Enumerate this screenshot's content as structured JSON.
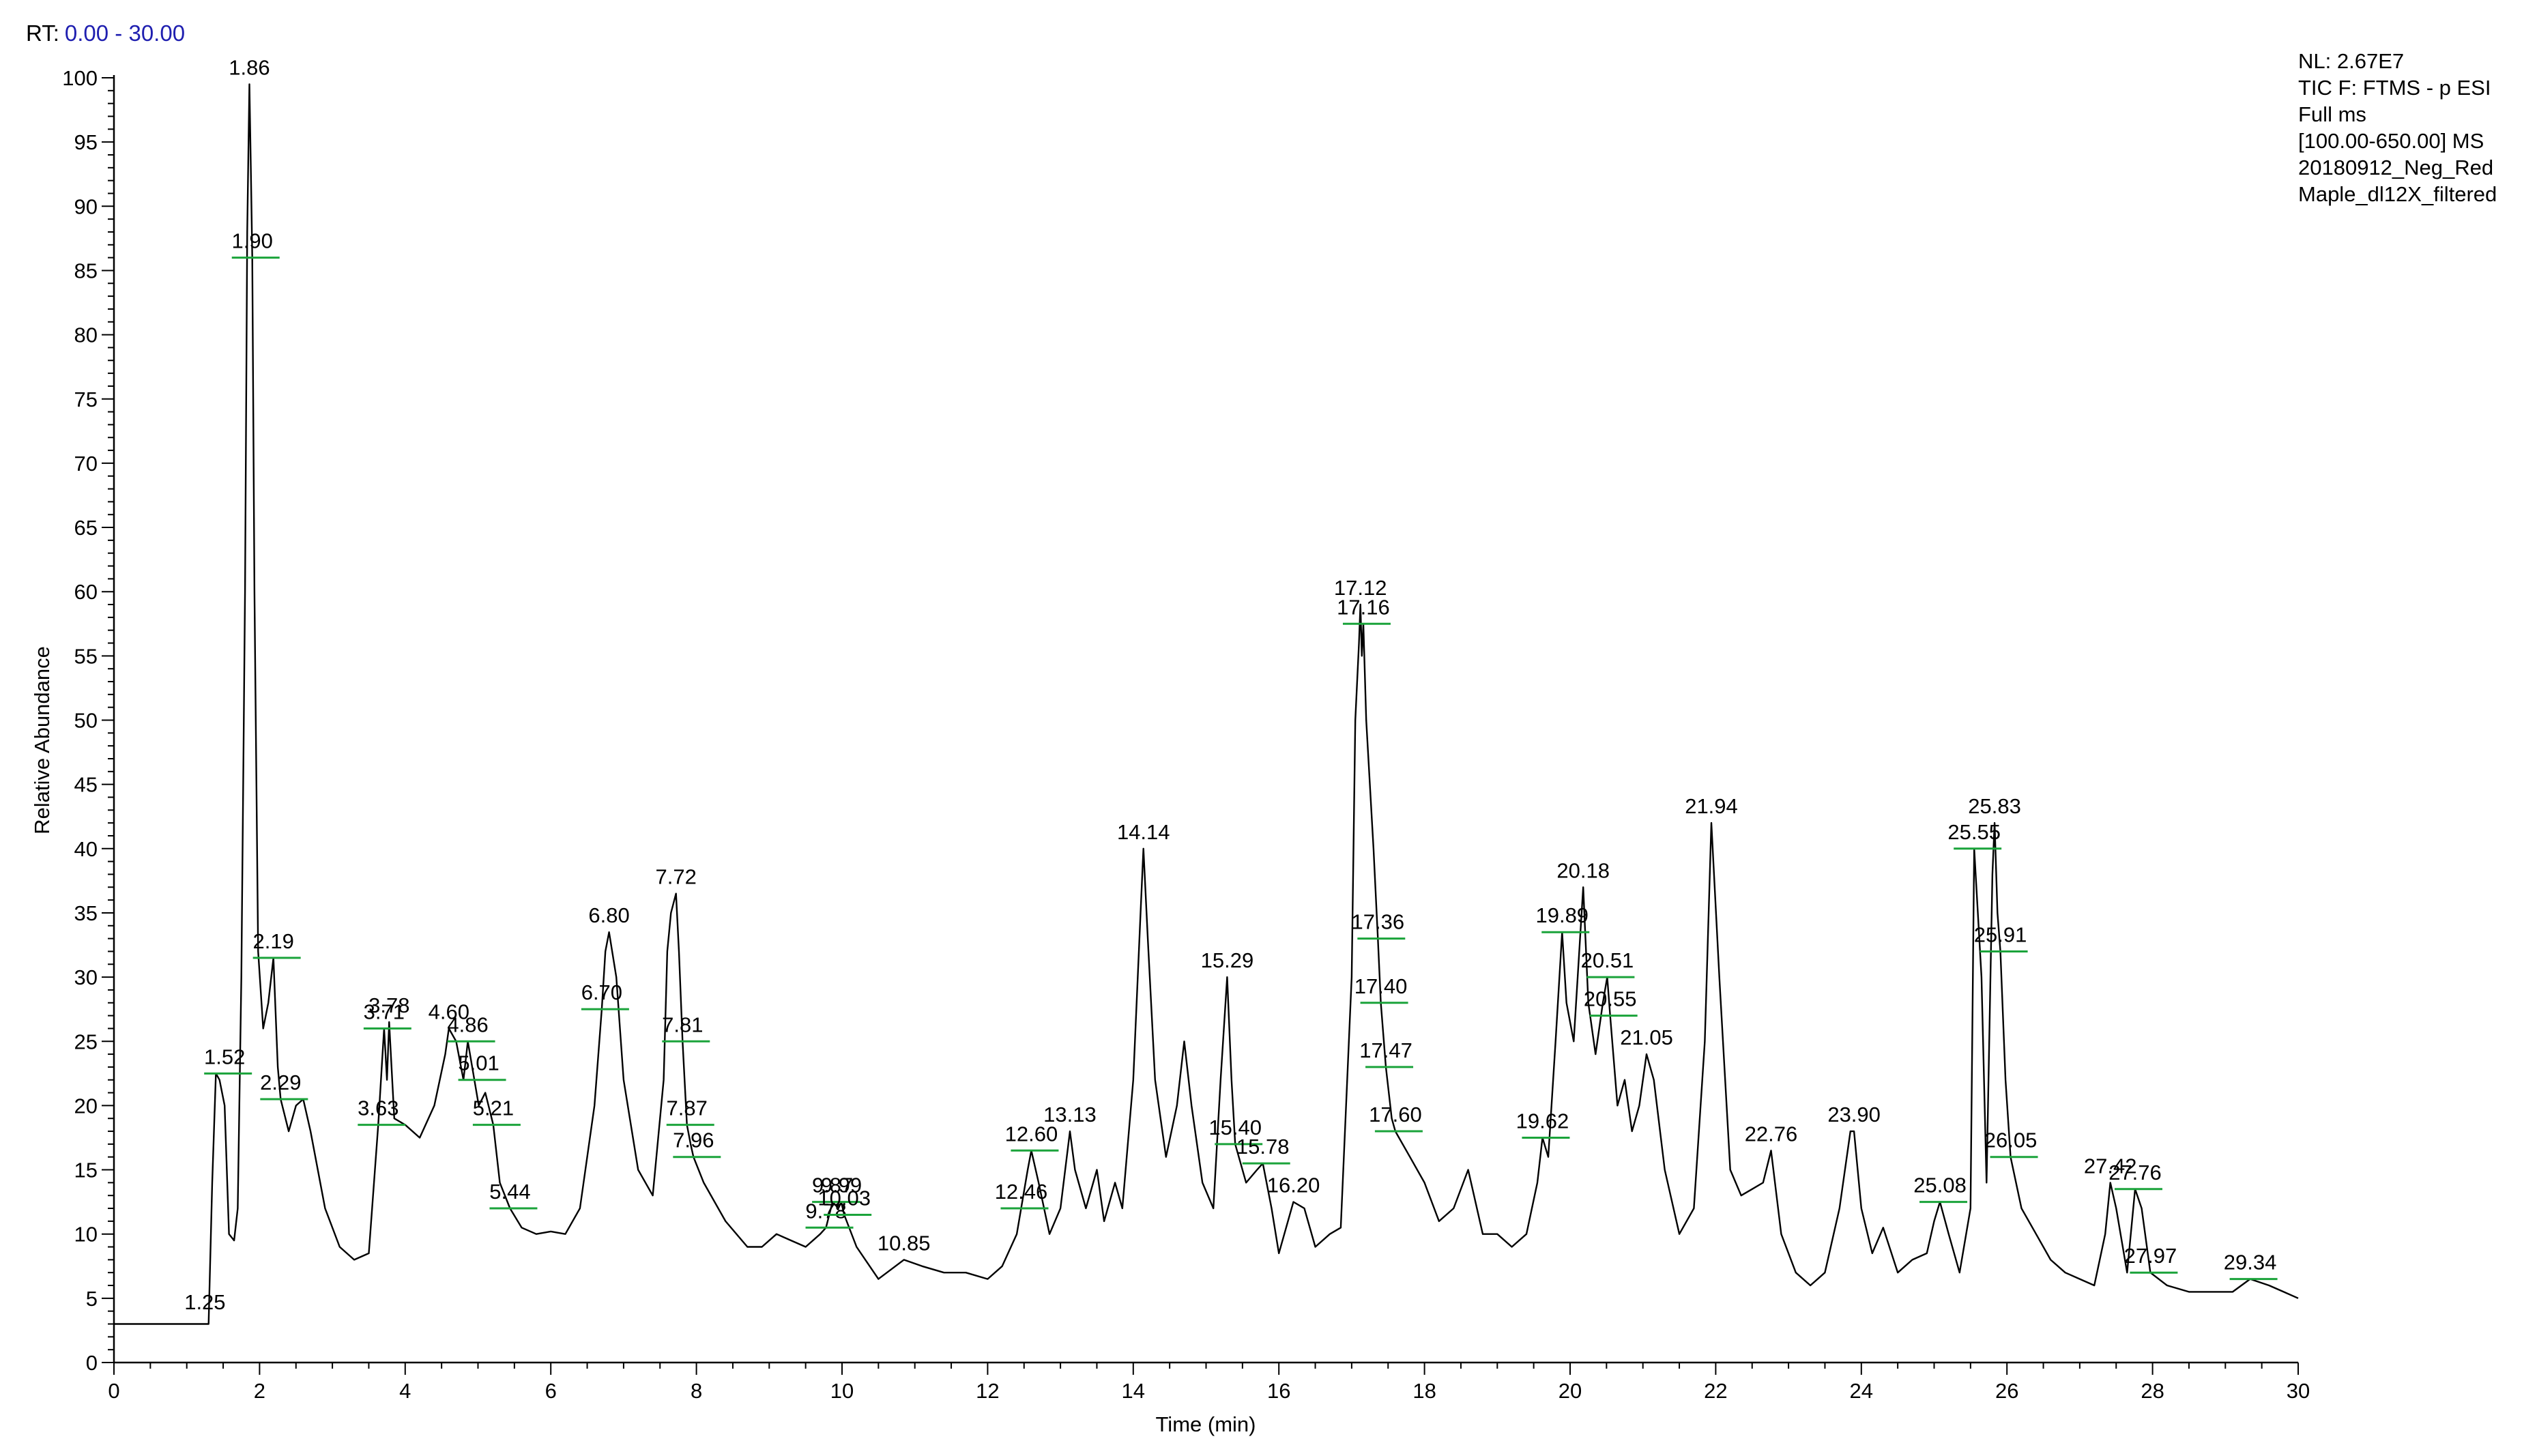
{
  "header": {
    "rt_label": "RT:",
    "rt_range": "0.00 - 30.00"
  },
  "info": {
    "lines": [
      "NL: 2.67E7",
      "TIC F: FTMS - p ESI",
      "Full ms",
      "[100.00-650.00]  MS",
      "20180912_Neg_Red",
      "Maple_dl12X_filtered"
    ]
  },
  "chart_data": {
    "type": "line",
    "title": "",
    "xlabel": "Time (min)",
    "ylabel": "Relative Abundance",
    "xlim": [
      0,
      30
    ],
    "ylim": [
      0,
      100
    ],
    "x_ticks": [
      0,
      2,
      4,
      6,
      8,
      10,
      12,
      14,
      16,
      18,
      20,
      22,
      24,
      26,
      28,
      30
    ],
    "y_ticks": [
      0,
      5,
      10,
      15,
      20,
      25,
      30,
      35,
      40,
      45,
      50,
      55,
      60,
      65,
      70,
      75,
      80,
      85,
      90,
      95,
      100
    ],
    "grid": false,
    "legend": "none",
    "colors": {
      "trace": "#000000",
      "label_tick": "#1aa33a",
      "rt_value": "#1f1fb0"
    },
    "series": [
      {
        "x": [
          0.0,
          0.5,
          1.0,
          1.3,
          1.35,
          1.4,
          1.45,
          1.52,
          1.58,
          1.65,
          1.7,
          1.75,
          1.8,
          1.83,
          1.86,
          1.88,
          1.9,
          1.93,
          1.98,
          2.05,
          2.12,
          2.19,
          2.25,
          2.29,
          2.4,
          2.5,
          2.6,
          2.7,
          2.9,
          3.1,
          3.3,
          3.5,
          3.63,
          3.71,
          3.75,
          3.78,
          3.85,
          4.0,
          4.2,
          4.4,
          4.55,
          4.6,
          4.7,
          4.8,
          4.86,
          4.95,
          5.01,
          5.1,
          5.21,
          5.3,
          5.44,
          5.6,
          5.8,
          6.0,
          6.2,
          6.4,
          6.6,
          6.7,
          6.75,
          6.8,
          6.9,
          7.0,
          7.2,
          7.4,
          7.55,
          7.6,
          7.65,
          7.72,
          7.76,
          7.81,
          7.87,
          7.92,
          7.96,
          8.1,
          8.4,
          8.7,
          8.9,
          9.1,
          9.3,
          9.5,
          9.7,
          9.78,
          9.87,
          9.95,
          9.99,
          10.03,
          10.2,
          10.5,
          10.85,
          11.1,
          11.4,
          11.7,
          12.0,
          12.2,
          12.4,
          12.46,
          12.55,
          12.6,
          12.7,
          12.85,
          13.0,
          13.13,
          13.2,
          13.35,
          13.5,
          13.6,
          13.75,
          13.85,
          14.0,
          14.1,
          14.14,
          14.2,
          14.3,
          14.45,
          14.6,
          14.7,
          14.8,
          14.95,
          15.1,
          15.2,
          15.29,
          15.35,
          15.4,
          15.55,
          15.7,
          15.78,
          15.9,
          16.0,
          16.2,
          16.35,
          16.5,
          16.7,
          16.85,
          17.0,
          17.05,
          17.1,
          17.12,
          17.14,
          17.16,
          17.2,
          17.3,
          17.36,
          17.4,
          17.47,
          17.55,
          17.6,
          17.8,
          18.0,
          18.2,
          18.4,
          18.6,
          18.8,
          19.0,
          19.2,
          19.4,
          19.55,
          19.62,
          19.7,
          19.8,
          19.89,
          19.95,
          20.05,
          20.18,
          20.25,
          20.35,
          20.45,
          20.51,
          20.55,
          20.65,
          20.75,
          20.85,
          20.95,
          21.05,
          21.15,
          21.3,
          21.5,
          21.7,
          21.85,
          21.94,
          22.05,
          22.2,
          22.35,
          22.5,
          22.65,
          22.76,
          22.9,
          23.1,
          23.3,
          23.5,
          23.7,
          23.85,
          23.9,
          24.0,
          24.15,
          24.3,
          24.5,
          24.7,
          24.9,
          25.0,
          25.08,
          25.2,
          25.35,
          25.5,
          25.55,
          25.65,
          25.72,
          25.8,
          25.83,
          25.87,
          25.91,
          25.98,
          26.05,
          26.2,
          26.4,
          26.6,
          26.8,
          27.0,
          27.2,
          27.35,
          27.42,
          27.5,
          27.65,
          27.76,
          27.85,
          27.97,
          28.2,
          28.5,
          28.8,
          29.1,
          29.34,
          29.6,
          29.8,
          30.0
        ],
        "y": [
          3.0,
          3.0,
          3.0,
          3.0,
          14.0,
          22.5,
          22.0,
          20.0,
          10.0,
          9.5,
          12.0,
          30.0,
          60.0,
          88.0,
          99.5,
          93.0,
          86.0,
          60.0,
          32.0,
          26.0,
          28.0,
          31.5,
          23.0,
          20.5,
          18.0,
          20.0,
          20.5,
          18.0,
          12.0,
          9.0,
          8.0,
          8.5,
          18.5,
          26.0,
          22.0,
          26.5,
          19.0,
          18.5,
          17.5,
          20.0,
          24.0,
          26.0,
          25.0,
          22.0,
          25.0,
          22.0,
          20.0,
          21.0,
          18.5,
          14.0,
          12.0,
          10.5,
          10.0,
          10.2,
          10.0,
          12.0,
          20.0,
          27.5,
          32.0,
          33.5,
          30.0,
          22.0,
          15.0,
          13.0,
          22.0,
          32.0,
          35.0,
          36.5,
          32.0,
          25.0,
          18.5,
          17.0,
          16.0,
          14.0,
          11.0,
          9.0,
          9.0,
          10.0,
          9.5,
          9.0,
          10.0,
          10.5,
          12.5,
          12.0,
          12.5,
          11.5,
          9.0,
          6.5,
          8.0,
          7.5,
          7.0,
          7.0,
          6.5,
          7.5,
          10.0,
          12.0,
          15.0,
          16.5,
          14.0,
          10.0,
          12.0,
          18.0,
          15.0,
          12.0,
          15.0,
          11.0,
          14.0,
          12.0,
          22.0,
          35.0,
          40.0,
          33.0,
          22.0,
          16.0,
          20.0,
          25.0,
          20.0,
          14.0,
          12.0,
          22.0,
          30.0,
          22.0,
          17.0,
          14.0,
          15.0,
          15.5,
          12.0,
          8.5,
          12.5,
          12.0,
          9.0,
          10.0,
          10.5,
          30.0,
          50.0,
          56.0,
          59.0,
          55.0,
          57.5,
          50.0,
          40.0,
          33.0,
          28.0,
          23.0,
          19.0,
          18.0,
          16.0,
          14.0,
          11.0,
          12.0,
          15.0,
          10.0,
          10.0,
          9.0,
          10.0,
          14.0,
          17.5,
          16.0,
          25.0,
          33.5,
          28.0,
          25.0,
          37.0,
          28.0,
          24.0,
          28.0,
          30.0,
          27.0,
          20.0,
          22.0,
          18.0,
          20.0,
          24.0,
          22.0,
          15.0,
          10.0,
          12.0,
          25.0,
          42.0,
          30.0,
          15.0,
          13.0,
          13.5,
          14.0,
          16.5,
          10.0,
          7.0,
          6.0,
          7.0,
          12.0,
          18.0,
          18.0,
          12.0,
          8.5,
          10.5,
          7.0,
          8.0,
          8.5,
          11.0,
          12.5,
          10.0,
          7.0,
          12.0,
          40.0,
          30.0,
          14.0,
          38.0,
          42.0,
          35.0,
          32.0,
          22.0,
          16.0,
          12.0,
          10.0,
          8.0,
          7.0,
          6.5,
          6.0,
          10.0,
          14.0,
          12.0,
          7.0,
          13.5,
          12.0,
          7.0,
          6.0,
          5.5,
          5.5,
          5.5,
          6.5,
          6.0,
          5.5,
          5.0
        ]
      }
    ],
    "peak_labels": [
      {
        "text": "1.25",
        "x": 1.25,
        "y": 3.4,
        "tick": false
      },
      {
        "text": "1.52",
        "x": 1.52,
        "y": 22.5,
        "tick": true
      },
      {
        "text": "1.86",
        "x": 1.86,
        "y": 99.5,
        "tick": false
      },
      {
        "text": "1.90",
        "x": 1.9,
        "y": 86.0,
        "tick": true
      },
      {
        "text": "2.19",
        "x": 2.19,
        "y": 31.5,
        "tick": true
      },
      {
        "text": "2.29",
        "x": 2.29,
        "y": 20.5,
        "tick": true
      },
      {
        "text": "3.63",
        "x": 3.63,
        "y": 18.5,
        "tick": true
      },
      {
        "text": "3.71",
        "x": 3.71,
        "y": 26.0,
        "tick": true
      },
      {
        "text": "3.78",
        "x": 3.78,
        "y": 26.5,
        "tick": false
      },
      {
        "text": "4.60",
        "x": 4.6,
        "y": 26.0,
        "tick": false
      },
      {
        "text": "4.86",
        "x": 4.86,
        "y": 25.0,
        "tick": true
      },
      {
        "text": "5.01",
        "x": 5.01,
        "y": 22.0,
        "tick": true
      },
      {
        "text": "5.21",
        "x": 5.21,
        "y": 18.5,
        "tick": true
      },
      {
        "text": "5.44",
        "x": 5.44,
        "y": 12.0,
        "tick": true
      },
      {
        "text": "6.70",
        "x": 6.7,
        "y": 27.5,
        "tick": true
      },
      {
        "text": "6.80",
        "x": 6.8,
        "y": 33.5,
        "tick": false
      },
      {
        "text": "7.72",
        "x": 7.72,
        "y": 36.5,
        "tick": false
      },
      {
        "text": "7.81",
        "x": 7.81,
        "y": 25.0,
        "tick": true
      },
      {
        "text": "7.87",
        "x": 7.87,
        "y": 18.5,
        "tick": true
      },
      {
        "text": "7.96",
        "x": 7.96,
        "y": 16.0,
        "tick": true
      },
      {
        "text": "9.78",
        "x": 9.78,
        "y": 10.5,
        "tick": true
      },
      {
        "text": "9.87",
        "x": 9.87,
        "y": 12.5,
        "tick": true
      },
      {
        "text": "9.99",
        "x": 9.99,
        "y": 12.5,
        "tick": false
      },
      {
        "text": "10.03",
        "x": 10.03,
        "y": 11.5,
        "tick": true
      },
      {
        "text": "10.85",
        "x": 10.85,
        "y": 8.0,
        "tick": false
      },
      {
        "text": "12.46",
        "x": 12.46,
        "y": 12.0,
        "tick": true
      },
      {
        "text": "12.60",
        "x": 12.6,
        "y": 16.5,
        "tick": true
      },
      {
        "text": "13.13",
        "x": 13.13,
        "y": 18.0,
        "tick": false
      },
      {
        "text": "14.14",
        "x": 14.14,
        "y": 40.0,
        "tick": false
      },
      {
        "text": "15.29",
        "x": 15.29,
        "y": 30.0,
        "tick": false
      },
      {
        "text": "15.40",
        "x": 15.4,
        "y": 17.0,
        "tick": true
      },
      {
        "text": "15.78",
        "x": 15.78,
        "y": 15.5,
        "tick": true
      },
      {
        "text": "16.20",
        "x": 16.2,
        "y": 12.5,
        "tick": false
      },
      {
        "text": "17.12",
        "x": 17.12,
        "y": 59.0,
        "tick": false
      },
      {
        "text": "17.16",
        "x": 17.16,
        "y": 57.5,
        "tick": true
      },
      {
        "text": "17.36",
        "x": 17.36,
        "y": 33.0,
        "tick": true
      },
      {
        "text": "17.40",
        "x": 17.4,
        "y": 28.0,
        "tick": true
      },
      {
        "text": "17.47",
        "x": 17.47,
        "y": 23.0,
        "tick": true
      },
      {
        "text": "17.60",
        "x": 17.6,
        "y": 18.0,
        "tick": true
      },
      {
        "text": "19.62",
        "x": 19.62,
        "y": 17.5,
        "tick": true
      },
      {
        "text": "19.89",
        "x": 19.89,
        "y": 33.5,
        "tick": true
      },
      {
        "text": "20.18",
        "x": 20.18,
        "y": 37.0,
        "tick": false
      },
      {
        "text": "20.51",
        "x": 20.51,
        "y": 30.0,
        "tick": true
      },
      {
        "text": "20.55",
        "x": 20.55,
        "y": 27.0,
        "tick": true
      },
      {
        "text": "21.05",
        "x": 21.05,
        "y": 24.0,
        "tick": false
      },
      {
        "text": "21.94",
        "x": 21.94,
        "y": 42.0,
        "tick": false
      },
      {
        "text": "22.76",
        "x": 22.76,
        "y": 16.5,
        "tick": false
      },
      {
        "text": "23.90",
        "x": 23.9,
        "y": 18.0,
        "tick": false
      },
      {
        "text": "25.08",
        "x": 25.08,
        "y": 12.5,
        "tick": true
      },
      {
        "text": "25.55",
        "x": 25.55,
        "y": 40.0,
        "tick": true
      },
      {
        "text": "25.83",
        "x": 25.83,
        "y": 42.0,
        "tick": false
      },
      {
        "text": "25.91",
        "x": 25.91,
        "y": 32.0,
        "tick": true
      },
      {
        "text": "26.05",
        "x": 26.05,
        "y": 16.0,
        "tick": true
      },
      {
        "text": "27.42",
        "x": 27.42,
        "y": 14.0,
        "tick": false
      },
      {
        "text": "27.76",
        "x": 27.76,
        "y": 13.5,
        "tick": true
      },
      {
        "text": "27.97",
        "x": 27.97,
        "y": 7.0,
        "tick": true
      },
      {
        "text": "29.34",
        "x": 29.34,
        "y": 6.5,
        "tick": true
      }
    ]
  }
}
